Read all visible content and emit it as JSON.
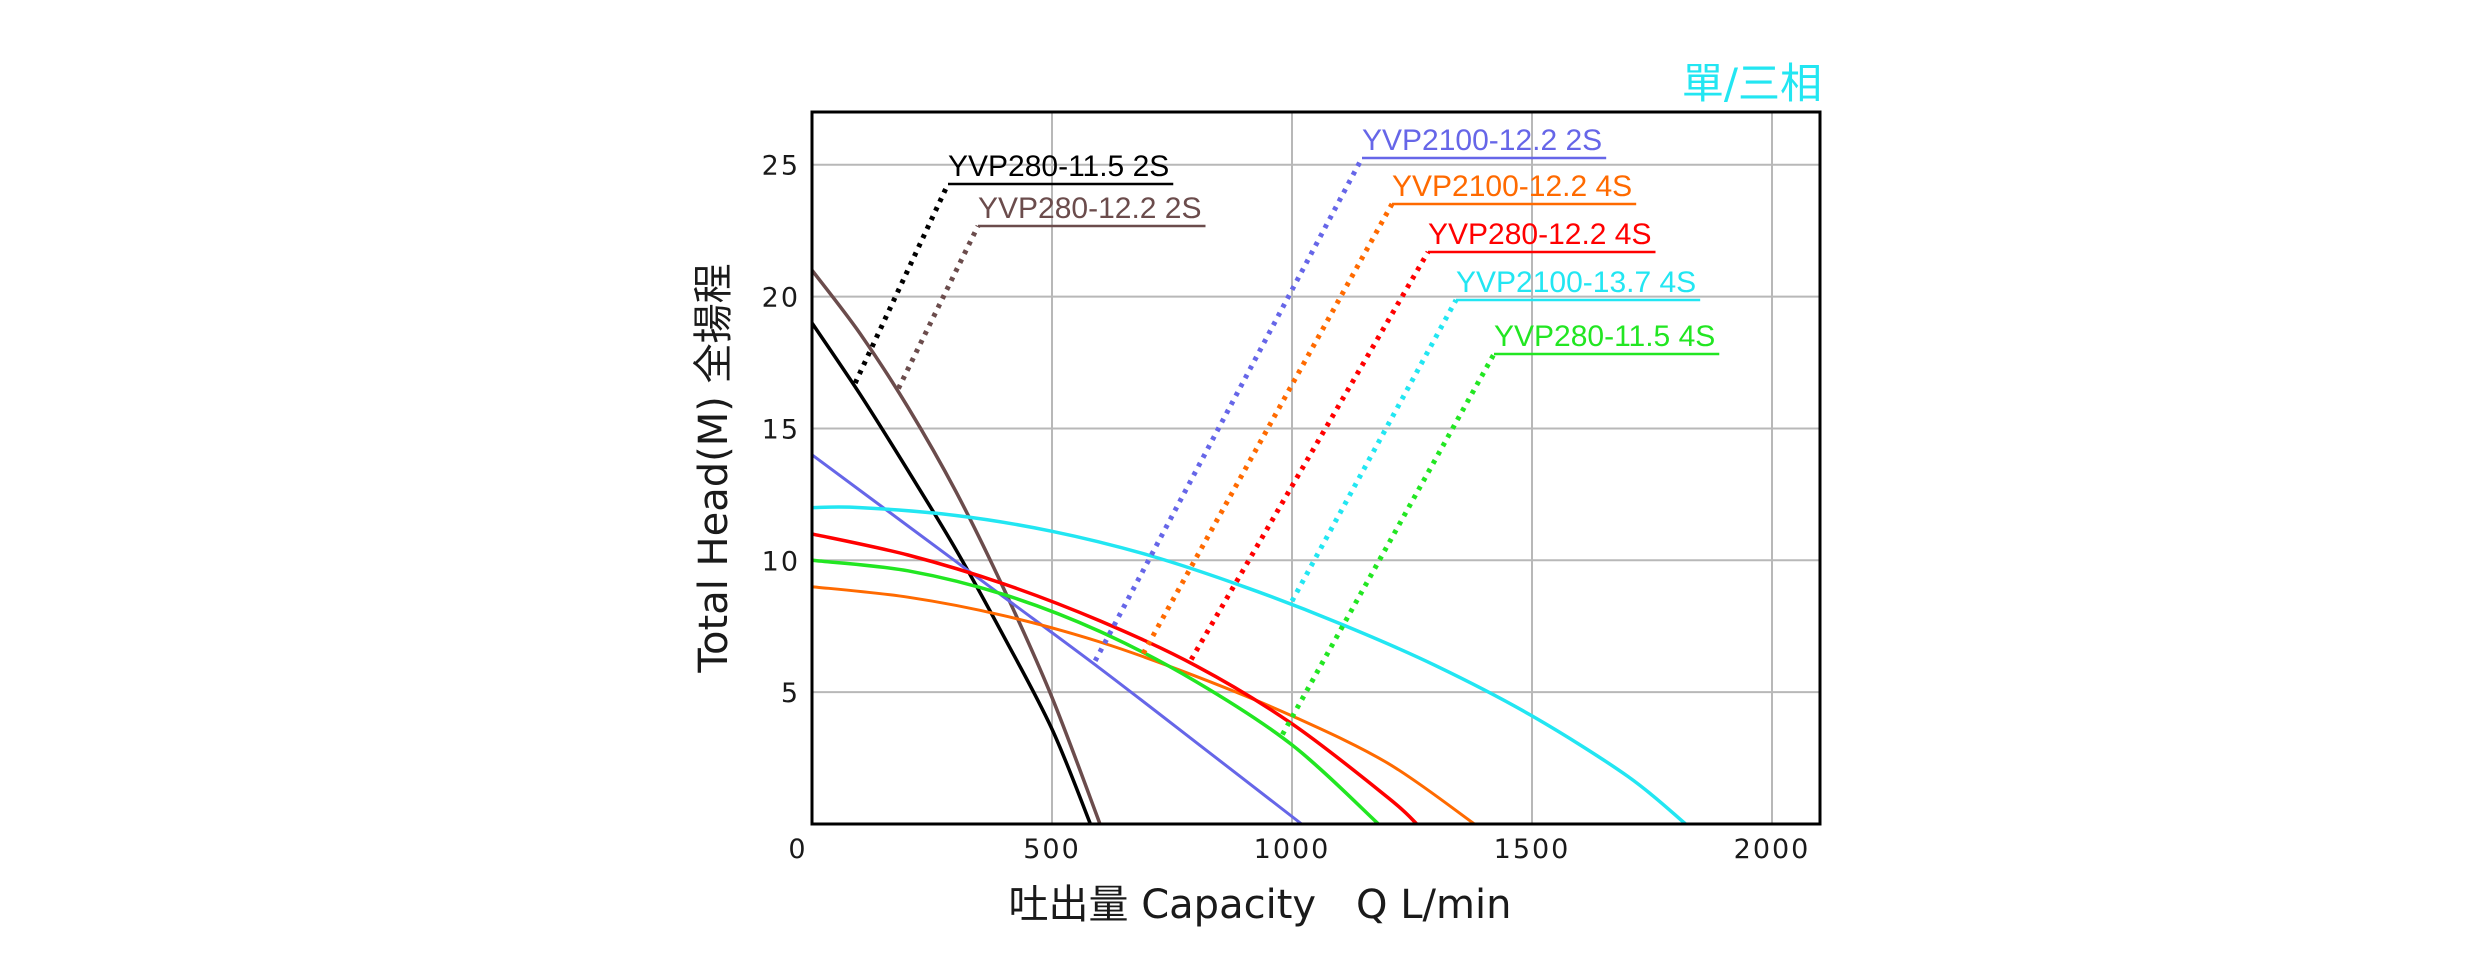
{
  "chart_data": {
    "type": "line",
    "title": "",
    "corner_label": "單/三相",
    "corner_label_color": "#22e6f2",
    "xlabel": "吐出量 Capacity　Q L/min",
    "ylabel": "Total Head(M) 全揚程",
    "xlim": [
      0,
      2100
    ],
    "ylim": [
      0,
      27
    ],
    "x_ticks": [
      0,
      500,
      1000,
      1500,
      2000
    ],
    "y_ticks": [
      5,
      10,
      15,
      20,
      25
    ],
    "grid": true,
    "legend": "leader-line labels",
    "series": [
      {
        "name": "YVP280-11.5 2S",
        "color": "#000000",
        "x": [
          0,
          100,
          200,
          300,
          400,
          500,
          580
        ],
        "y": [
          19,
          16.3,
          13.4,
          10.4,
          7.1,
          3.6,
          0
        ]
      },
      {
        "name": "YVP280-12.2 2S",
        "color": "#6b4c4c",
        "x": [
          0,
          100,
          200,
          300,
          400,
          500,
          600
        ],
        "y": [
          21,
          18.6,
          15.8,
          12.6,
          8.9,
          4.8,
          0
        ]
      },
      {
        "name": "YVP2100-12.2 2S",
        "color": "#6666e8",
        "x": [
          0,
          200,
          400,
          600,
          800,
          1020
        ],
        "y": [
          14,
          11.3,
          8.6,
          5.9,
          3.1,
          0
        ]
      },
      {
        "name": "YVP2100-12.2 4S",
        "color": "#ff6a00",
        "x": [
          0,
          200,
          400,
          600,
          800,
          1000,
          1200,
          1380
        ],
        "y": [
          9,
          8.6,
          7.9,
          6.9,
          5.6,
          4.1,
          2.3,
          0
        ]
      },
      {
        "name": "YVP280-12.2 4S",
        "color": "#ff0000",
        "x": [
          0,
          200,
          400,
          600,
          800,
          1000,
          1200,
          1260
        ],
        "y": [
          11,
          10.2,
          9.1,
          7.7,
          6.0,
          3.8,
          1.0,
          0
        ]
      },
      {
        "name": "YVP2100-13.7 4S",
        "color": "#22e6f2",
        "x": [
          0,
          100,
          300,
          500,
          700,
          900,
          1100,
          1300,
          1500,
          1700,
          1820
        ],
        "y": [
          12,
          12,
          11.7,
          11.1,
          10.2,
          9.0,
          7.6,
          6.0,
          4.1,
          1.8,
          0
        ]
      },
      {
        "name": "YVP280-11.5 4S",
        "color": "#22e622",
        "x": [
          0,
          200,
          400,
          600,
          800,
          1000,
          1180
        ],
        "y": [
          10,
          9.6,
          8.7,
          7.3,
          5.4,
          3.0,
          0
        ]
      }
    ]
  }
}
